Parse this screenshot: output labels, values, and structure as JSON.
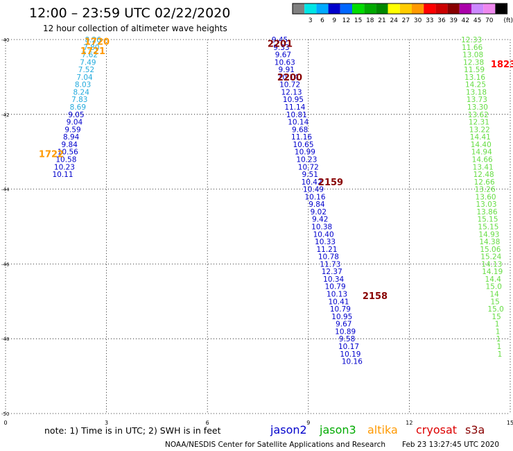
{
  "chart_data": {
    "type": "scatter",
    "title": "12:00 – 23:59 UTC 02/22/2020",
    "subtitle": "12 hour collection of altimeter wave heights",
    "xlim": [
      0,
      15
    ],
    "ylim": [
      -50,
      -40
    ],
    "x_ticks": [
      "0",
      "3",
      "6",
      "9",
      "12",
      "15"
    ],
    "y_ticks": [
      "-40",
      "-42",
      "-44",
      "-46",
      "-48",
      "-50"
    ],
    "grid": true,
    "legend": {
      "colors": [
        "#808080",
        "#00e5e5",
        "#00aaff",
        "#0000cc",
        "#0066ff",
        "#00dd00",
        "#00aa00",
        "#008800",
        "#ffff00",
        "#ffcc00",
        "#ff9900",
        "#ff0000",
        "#cc0000",
        "#880000",
        "#aa00aa",
        "#cc88ff",
        "#ee88ee",
        "#000000"
      ],
      "labels": [
        "3",
        "6",
        "9",
        "12",
        "15",
        "18",
        "21",
        "24",
        "27",
        "30",
        "33",
        "36",
        "39",
        "42",
        "45",
        "70"
      ],
      "unit": "(ft)"
    },
    "groups": [
      {
        "label": "1720",
        "label_color": "#ff9900",
        "color": "#22aadd",
        "points": [
          [
            2.6,
            -40.0,
            "8.26"
          ],
          [
            2.55,
            -40.2,
            "7.80"
          ],
          [
            2.5,
            -40.4,
            "7.62"
          ],
          [
            2.45,
            -40.6,
            "7.49"
          ],
          [
            2.4,
            -40.8,
            "7.52"
          ],
          [
            2.35,
            -41.0,
            "7.04"
          ],
          [
            2.3,
            -41.2,
            "8.03"
          ],
          [
            2.25,
            -41.4,
            "8.24"
          ],
          [
            2.2,
            -41.6,
            "7.83"
          ],
          [
            2.15,
            -41.8,
            "8.69"
          ]
        ]
      },
      {
        "label": "1721",
        "label_color": "#ff9900",
        "color": "#0000cc",
        "points": [
          [
            2.1,
            -42.0,
            "9.05"
          ],
          [
            2.05,
            -42.2,
            "9.04"
          ],
          [
            2.0,
            -42.4,
            "9.59"
          ],
          [
            1.95,
            -42.6,
            "8.94"
          ],
          [
            1.9,
            -42.8,
            "9.84"
          ],
          [
            1.85,
            -43.0,
            "10.56"
          ],
          [
            1.8,
            -43.2,
            "10.58"
          ],
          [
            1.75,
            -43.4,
            "10.23"
          ],
          [
            1.7,
            -43.6,
            "10.11"
          ]
        ]
      },
      {
        "label": "1722",
        "label_color": "#ff9900",
        "color": "#0000cc",
        "points": []
      },
      {
        "label": "2201",
        "label_color": "#880000",
        "color": "#0000cc",
        "points": [
          [
            8.15,
            -40.0,
            "9.45"
          ],
          [
            8.2,
            -40.2,
            "9.33"
          ],
          [
            8.25,
            -40.4,
            "9.67"
          ],
          [
            8.3,
            -40.6,
            "10.63"
          ],
          [
            8.35,
            -40.8,
            "9.91"
          ],
          [
            8.4,
            -41.0,
            "10.14"
          ],
          [
            8.45,
            -41.2,
            "10.72"
          ],
          [
            8.5,
            -41.4,
            "12.13"
          ],
          [
            8.55,
            -41.6,
            "10.95"
          ],
          [
            8.6,
            -41.8,
            "11.14"
          ],
          [
            8.65,
            -42.0,
            "10.81"
          ],
          [
            8.7,
            -42.2,
            "10.14"
          ],
          [
            8.75,
            -42.4,
            "9.68"
          ],
          [
            8.8,
            -42.6,
            "11.16"
          ],
          [
            8.85,
            -42.8,
            "10.65"
          ],
          [
            8.9,
            -43.0,
            "10.99"
          ],
          [
            8.95,
            -43.2,
            "10.23"
          ],
          [
            9.0,
            -43.4,
            "10.72"
          ],
          [
            9.05,
            -43.6,
            "9.51"
          ]
        ]
      },
      {
        "label": "2200",
        "label_color": "#880000",
        "color": "#0000cc",
        "points": [
          [
            9.1,
            -43.8,
            "10.42"
          ],
          [
            9.15,
            -44.0,
            "10.49"
          ],
          [
            9.2,
            -44.2,
            "10.16"
          ],
          [
            9.25,
            -44.4,
            "9.84"
          ],
          [
            9.3,
            -44.6,
            "9.02"
          ],
          [
            9.35,
            -44.8,
            "9.42"
          ],
          [
            9.4,
            -45.0,
            "10.38"
          ],
          [
            9.45,
            -45.2,
            "10.40"
          ],
          [
            9.5,
            -45.4,
            "10.33"
          ],
          [
            9.55,
            -45.6,
            "11.21"
          ],
          [
            9.6,
            -45.8,
            "10.78"
          ],
          [
            9.65,
            -46.0,
            "11.73"
          ],
          [
            9.7,
            -46.2,
            "12.37"
          ],
          [
            9.75,
            -46.4,
            "10.34"
          ],
          [
            9.8,
            -46.6,
            "10.79"
          ],
          [
            9.85,
            -46.8,
            "10.13"
          ]
        ]
      },
      {
        "label": "2159",
        "label_color": "#880000",
        "color": "#0000cc",
        "points": [
          [
            9.9,
            -47.0,
            "10.41"
          ],
          [
            9.95,
            -47.2,
            "10.79"
          ],
          [
            10.0,
            -47.4,
            "10.95"
          ],
          [
            10.05,
            -47.6,
            "9.67"
          ],
          [
            10.1,
            -47.8,
            "10.89"
          ],
          [
            10.15,
            -48.0,
            "9.58"
          ],
          [
            10.2,
            -48.2,
            "10.17"
          ],
          [
            10.25,
            -48.4,
            "10.19"
          ],
          [
            10.3,
            -48.6,
            "10.16"
          ]
        ]
      },
      {
        "label": "2158",
        "label_color": "#880000",
        "color": "#0000cc",
        "points": []
      },
      {
        "label": "1823",
        "label_color": "#ff0000",
        "color": "#66dd44",
        "points": [
          [
            13.85,
            -40.0,
            "12.33"
          ],
          [
            13.87,
            -40.2,
            "11.66"
          ],
          [
            13.89,
            -40.4,
            "13.08"
          ],
          [
            13.91,
            -40.6,
            "12.38"
          ],
          [
            13.93,
            -40.8,
            "11.59"
          ],
          [
            13.95,
            -41.0,
            "13.16"
          ],
          [
            13.97,
            -41.2,
            "14.25"
          ],
          [
            13.99,
            -41.4,
            "13.18"
          ],
          [
            14.01,
            -41.6,
            "13.73"
          ],
          [
            14.03,
            -41.8,
            "13.30"
          ],
          [
            14.05,
            -42.0,
            "13.62"
          ],
          [
            14.07,
            -42.2,
            "12.31"
          ],
          [
            14.09,
            -42.4,
            "13.22"
          ],
          [
            14.11,
            -42.6,
            "14.41"
          ],
          [
            14.13,
            -42.8,
            "14.40"
          ],
          [
            14.15,
            -43.0,
            "14.94"
          ],
          [
            14.17,
            -43.2,
            "14.66"
          ],
          [
            14.19,
            -43.4,
            "13.41"
          ],
          [
            14.21,
            -43.6,
            "12.48"
          ],
          [
            14.23,
            -43.8,
            "12.66"
          ],
          [
            14.25,
            -44.0,
            "13.26"
          ],
          [
            14.27,
            -44.2,
            "13.60"
          ],
          [
            14.29,
            -44.4,
            "13.03"
          ],
          [
            14.31,
            -44.6,
            "13.86"
          ],
          [
            14.33,
            -44.8,
            "15.15"
          ],
          [
            14.35,
            -45.0,
            "15.15"
          ],
          [
            14.37,
            -45.2,
            "14.93"
          ],
          [
            14.39,
            -45.4,
            "14.38"
          ],
          [
            14.41,
            -45.6,
            "15.06"
          ],
          [
            14.43,
            -45.8,
            "15.24"
          ],
          [
            14.45,
            -46.0,
            "14.13"
          ],
          [
            14.47,
            -46.2,
            "14.19"
          ],
          [
            14.49,
            -46.4,
            "14.4"
          ],
          [
            14.51,
            -46.6,
            "15.0"
          ],
          [
            14.53,
            -46.8,
            "14"
          ],
          [
            14.55,
            -47.0,
            "15"
          ],
          [
            14.57,
            -47.2,
            "15.0"
          ],
          [
            14.59,
            -47.4,
            "15"
          ],
          [
            14.61,
            -47.6,
            "1"
          ],
          [
            14.63,
            -47.8,
            "1"
          ],
          [
            14.65,
            -48.0,
            "1"
          ],
          [
            14.67,
            -48.2,
            "1"
          ],
          [
            14.69,
            -48.4,
            "1"
          ]
        ]
      }
    ],
    "notes": {
      "text": "note:  1) Time is in UTC; 2) SWH is in feet",
      "legend_names": [
        {
          "name": "jason2",
          "color": "#0000cc"
        },
        {
          "name": "jason3",
          "color": "#00aa00"
        },
        {
          "name": "altika",
          "color": "#ff9900"
        },
        {
          "name": "cryosat",
          "color": "#dd0000"
        },
        {
          "name": "s3a",
          "color": "#880000"
        }
      ]
    },
    "footer": {
      "credit": "NOAA/NESDIS Center for Satellite Applications and Research",
      "timestamp": "Feb 23 13:27:45 UTC 2020"
    }
  }
}
